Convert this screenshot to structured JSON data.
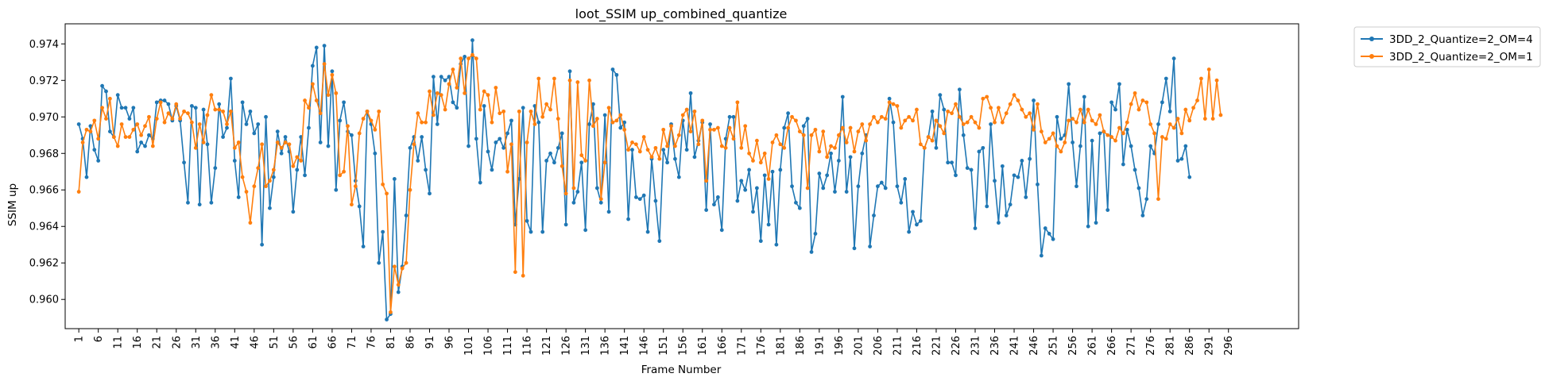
{
  "chart_data": {
    "type": "line",
    "title": "loot_SSIM up_combined_quantize",
    "xlabel": "Frame Number",
    "ylabel": "SSIM up",
    "xlim": [
      -2.5,
      314
    ],
    "ylim": [
      0.9584,
      0.9751
    ],
    "xticks": [
      1,
      6,
      11,
      16,
      21,
      26,
      31,
      36,
      41,
      46,
      51,
      56,
      61,
      66,
      71,
      76,
      81,
      86,
      91,
      96,
      101,
      106,
      111,
      116,
      121,
      126,
      131,
      136,
      141,
      146,
      151,
      156,
      161,
      166,
      171,
      176,
      181,
      186,
      191,
      196,
      201,
      206,
      211,
      216,
      221,
      226,
      231,
      236,
      241,
      246,
      251,
      256,
      261,
      266,
      271,
      276,
      281,
      286,
      291,
      296
    ],
    "yticks": [
      "0.960",
      "0.962",
      "0.964",
      "0.966",
      "0.968",
      "0.970",
      "0.972",
      "0.974"
    ],
    "legend_position": "outside-top-right",
    "x_start": 1,
    "series": [
      {
        "name": "3DD_2_Quantize=2_OM=4",
        "color": "#1f77b4",
        "values": [
          0.9696,
          0.9688,
          0.9667,
          0.9695,
          0.9682,
          0.9676,
          0.9717,
          0.9714,
          0.9692,
          0.9689,
          0.9712,
          0.9705,
          0.9705,
          0.9699,
          0.9705,
          0.9681,
          0.9686,
          0.9684,
          0.969,
          0.9688,
          0.9708,
          0.9709,
          0.9709,
          0.9707,
          0.9698,
          0.9706,
          0.9698,
          0.9675,
          0.9653,
          0.9706,
          0.9705,
          0.9652,
          0.9704,
          0.9685,
          0.9653,
          0.9672,
          0.9707,
          0.9689,
          0.9694,
          0.9721,
          0.9676,
          0.9656,
          0.9708,
          0.9696,
          0.9703,
          0.9691,
          0.9696,
          0.963,
          0.97,
          0.965,
          0.9667,
          0.9692,
          0.968,
          0.9689,
          0.9681,
          0.9648,
          0.9671,
          0.9689,
          0.9668,
          0.9694,
          0.9728,
          0.9738,
          0.9686,
          0.9739,
          0.9684,
          0.9725,
          0.966,
          0.9698,
          0.9708,
          0.9692,
          0.969,
          0.9665,
          0.9651,
          0.9629,
          0.9703,
          0.9696,
          0.968,
          0.962,
          0.9637,
          0.9589,
          0.9592,
          0.9666,
          0.9604,
          0.9618,
          0.9646,
          0.9683,
          0.9689,
          0.9676,
          0.9689,
          0.9671,
          0.9658,
          0.9722,
          0.9696,
          0.9722,
          0.972,
          0.9722,
          0.9708,
          0.9705,
          0.9729,
          0.9733,
          0.9684,
          0.9742,
          0.9688,
          0.9664,
          0.9706,
          0.9681,
          0.9671,
          0.9686,
          0.9688,
          0.9683,
          0.9691,
          0.9698,
          0.9641,
          0.9666,
          0.9705,
          0.9643,
          0.9637,
          0.9706,
          0.9697,
          0.9637,
          0.9676,
          0.968,
          0.9675,
          0.9683,
          0.9691,
          0.9641,
          0.9725,
          0.9653,
          0.9659,
          0.9675,
          0.9638,
          0.9696,
          0.9707,
          0.9661,
          0.9653,
          0.9701,
          0.9648,
          0.9726,
          0.9723,
          0.9694,
          0.9697,
          0.9644,
          0.9682,
          0.9656,
          0.9655,
          0.9657,
          0.9637,
          0.9677,
          0.9654,
          0.9632,
          0.9682,
          0.9675,
          0.9696,
          0.9677,
          0.9667,
          0.9698,
          0.9682,
          0.9713,
          0.9678,
          0.9687,
          0.9697,
          0.9649,
          0.9696,
          0.9652,
          0.9656,
          0.9638,
          0.9688,
          0.97,
          0.97,
          0.9654,
          0.9665,
          0.966,
          0.9671,
          0.9648,
          0.9661,
          0.9632,
          0.9668,
          0.9641,
          0.967,
          0.963,
          0.9671,
          0.9694,
          0.9702,
          0.9662,
          0.9653,
          0.965,
          0.9695,
          0.9699,
          0.9626,
          0.9636,
          0.9669,
          0.9661,
          0.9668,
          0.968,
          0.9659,
          0.9676,
          0.9711,
          0.9659,
          0.9678,
          0.9628,
          0.9662,
          0.968,
          0.969,
          0.9629,
          0.9646,
          0.9662,
          0.9664,
          0.9661,
          0.971,
          0.9697,
          0.9662,
          0.9653,
          0.9666,
          0.9637,
          0.9648,
          0.9641,
          0.9643,
          0.9683,
          0.9689,
          0.9703,
          0.9683,
          0.9712,
          0.9704,
          0.9675,
          0.9675,
          0.9668,
          0.9715,
          0.969,
          0.9672,
          0.9671,
          0.9639,
          0.9681,
          0.9683,
          0.9651,
          0.9696,
          0.9665,
          0.9642,
          0.9673,
          0.9646,
          0.9652,
          0.9668,
          0.9667,
          0.9676,
          0.9656,
          0.9677,
          0.9709,
          0.9663,
          0.9624,
          0.9639,
          0.9636,
          0.9633,
          0.97,
          0.9688,
          0.969,
          0.9718,
          0.9686,
          0.9662,
          0.9684,
          0.9711,
          0.964,
          0.9687,
          0.9642,
          0.9691,
          0.9692,
          0.9649,
          0.9708,
          0.9704,
          0.9718,
          0.9674,
          0.9693,
          0.9684,
          0.9671,
          0.9661,
          0.9646,
          0.9655,
          0.9684,
          0.968,
          0.9696,
          0.9708,
          0.9721,
          0.9703,
          0.9732,
          0.9676,
          0.9677,
          0.9684,
          0.9667
        ]
      },
      {
        "name": "3DD_2_Quantize=2_OM=1",
        "color": "#ff7f0e",
        "values": [
          0.9659,
          0.9686,
          0.9693,
          0.9692,
          0.9698,
          0.9688,
          0.9705,
          0.9699,
          0.971,
          0.9689,
          0.9684,
          0.9696,
          0.9689,
          0.9689,
          0.9693,
          0.9696,
          0.969,
          0.9695,
          0.97,
          0.9684,
          0.9699,
          0.9708,
          0.9697,
          0.9702,
          0.9699,
          0.9707,
          0.9699,
          0.9703,
          0.9702,
          0.9697,
          0.9683,
          0.9696,
          0.9686,
          0.9701,
          0.9712,
          0.9704,
          0.9704,
          0.9703,
          0.9696,
          0.9703,
          0.9683,
          0.9686,
          0.9667,
          0.9659,
          0.9642,
          0.9662,
          0.9672,
          0.9685,
          0.9662,
          0.9665,
          0.9671,
          0.9686,
          0.9683,
          0.9686,
          0.9685,
          0.9673,
          0.9678,
          0.9676,
          0.9709,
          0.9705,
          0.9718,
          0.9709,
          0.9702,
          0.9729,
          0.9712,
          0.9723,
          0.9713,
          0.9668,
          0.967,
          0.9695,
          0.9652,
          0.9662,
          0.9691,
          0.9699,
          0.9703,
          0.9698,
          0.9693,
          0.9703,
          0.9663,
          0.9658,
          0.9593,
          0.9618,
          0.9608,
          0.9617,
          0.962,
          0.966,
          0.9685,
          0.9702,
          0.9697,
          0.9697,
          0.9714,
          0.9701,
          0.9713,
          0.9712,
          0.9704,
          0.9718,
          0.9726,
          0.9716,
          0.9732,
          0.9713,
          0.9732,
          0.9734,
          0.9732,
          0.9704,
          0.9714,
          0.9712,
          0.9697,
          0.9716,
          0.9702,
          0.9703,
          0.967,
          0.9685,
          0.9615,
          0.9703,
          0.9613,
          0.9686,
          0.9703,
          0.9696,
          0.9721,
          0.97,
          0.9707,
          0.9704,
          0.9721,
          0.9699,
          0.9673,
          0.9658,
          0.972,
          0.9661,
          0.9719,
          0.9679,
          0.9676,
          0.972,
          0.9695,
          0.9699,
          0.9655,
          0.9675,
          0.9705,
          0.9697,
          0.9698,
          0.9701,
          0.9693,
          0.9682,
          0.9686,
          0.9685,
          0.9681,
          0.9689,
          0.9682,
          0.9678,
          0.9683,
          0.9677,
          0.9693,
          0.9684,
          0.9695,
          0.9684,
          0.969,
          0.9701,
          0.9704,
          0.9692,
          0.9703,
          0.9685,
          0.9698,
          0.9665,
          0.9693,
          0.9693,
          0.9694,
          0.9684,
          0.9683,
          0.9694,
          0.9688,
          0.9708,
          0.9683,
          0.9695,
          0.968,
          0.9676,
          0.9687,
          0.9675,
          0.968,
          0.9666,
          0.9686,
          0.969,
          0.9685,
          0.9683,
          0.9694,
          0.97,
          0.9698,
          0.9692,
          0.969,
          0.9661,
          0.969,
          0.9693,
          0.9681,
          0.9692,
          0.9678,
          0.9684,
          0.9683,
          0.969,
          0.9694,
          0.9686,
          0.9694,
          0.9681,
          0.9692,
          0.9696,
          0.9687,
          0.9696,
          0.97,
          0.9697,
          0.97,
          0.9699,
          0.9708,
          0.9707,
          0.9706,
          0.9694,
          0.9698,
          0.97,
          0.9698,
          0.9704,
          0.9685,
          0.9683,
          0.9689,
          0.9687,
          0.9698,
          0.9695,
          0.9691,
          0.9703,
          0.9702,
          0.9707,
          0.97,
          0.9696,
          0.9697,
          0.97,
          0.9697,
          0.9694,
          0.971,
          0.9711,
          0.9705,
          0.9697,
          0.9705,
          0.9697,
          0.9702,
          0.9707,
          0.9712,
          0.9709,
          0.9704,
          0.97,
          0.9702,
          0.9693,
          0.9707,
          0.9692,
          0.9686,
          0.9688,
          0.9691,
          0.9684,
          0.9681,
          0.9686,
          0.9698,
          0.9699,
          0.9697,
          0.9704,
          0.9697,
          0.9704,
          0.9698,
          0.9696,
          0.9701,
          0.9692,
          0.969,
          0.9689,
          0.9687,
          0.9694,
          0.9691,
          0.9697,
          0.9707,
          0.9713,
          0.9704,
          0.9709,
          0.9708,
          0.9696,
          0.9691,
          0.9655,
          0.9689,
          0.9688,
          0.9696,
          0.9694,
          0.9699,
          0.9691,
          0.9704,
          0.9698,
          0.9705,
          0.9709,
          0.9721,
          0.9699,
          0.9726,
          0.9699,
          0.972,
          0.9701
        ]
      }
    ]
  }
}
